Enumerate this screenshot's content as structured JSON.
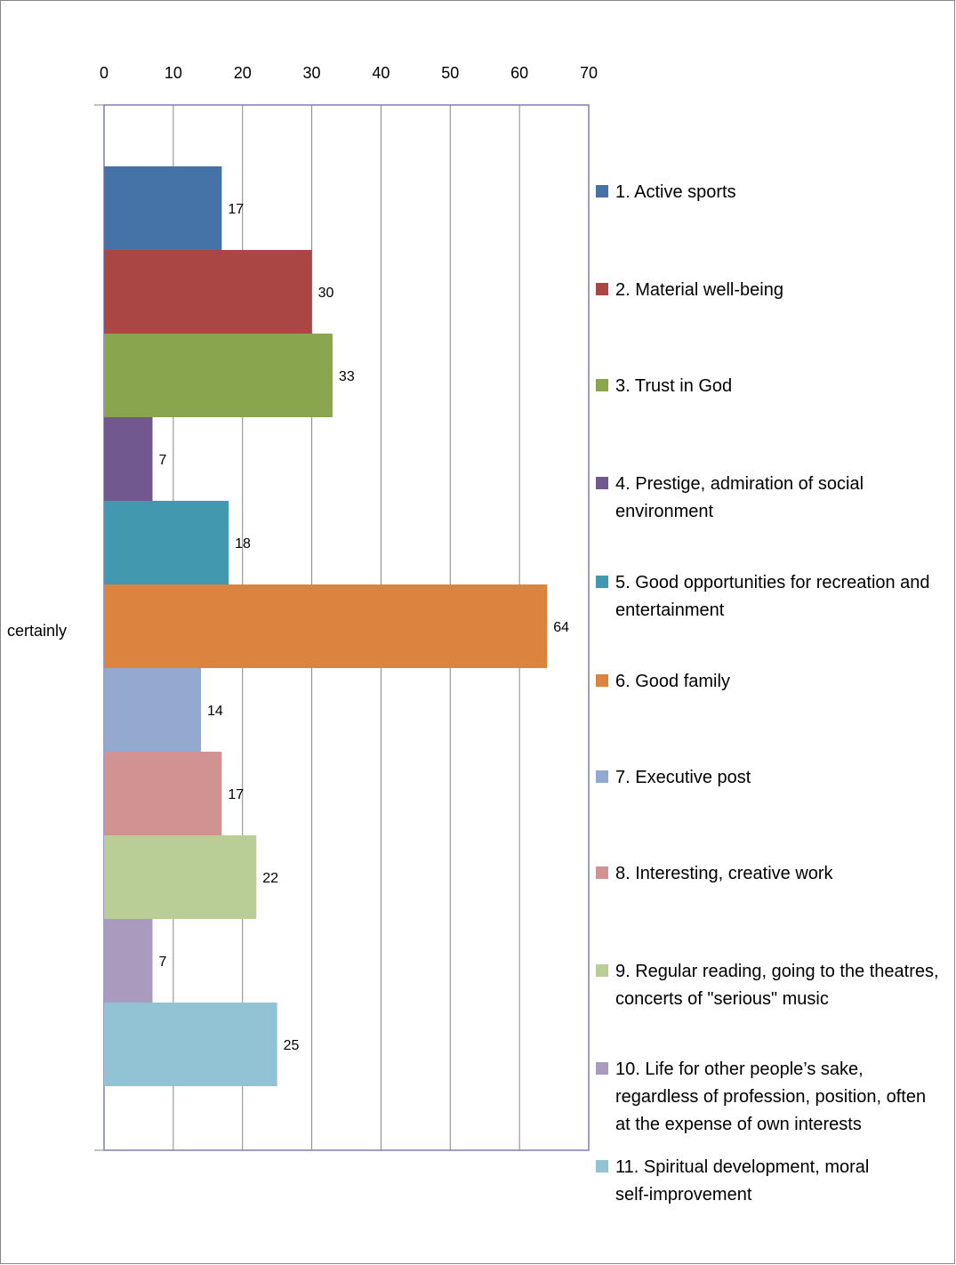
{
  "chart_data": {
    "type": "bar",
    "orientation": "horizontal",
    "title": "",
    "xlabel": "",
    "ylabel": "",
    "categories": [
      "certainly"
    ],
    "xlim": [
      0,
      70
    ],
    "x_ticks": [
      0,
      10,
      20,
      30,
      40,
      50,
      60,
      70
    ],
    "x_axis_position": "top",
    "grid": true,
    "legend_position": "right",
    "data_labels": true,
    "series": [
      {
        "name": "1. Active sports",
        "color": "#4572A7",
        "values": [
          17
        ]
      },
      {
        "name": "2. Material well-being",
        "color": "#AA4643",
        "values": [
          30
        ]
      },
      {
        "name": "3. Trust in God",
        "color": "#89A54E",
        "values": [
          33
        ]
      },
      {
        "name": "4. Prestige, admiration of social environment",
        "color": "#71588F",
        "values": [
          7
        ]
      },
      {
        "name": "5. Good opportunities for recreation and entertainment",
        "color": "#4198AF",
        "values": [
          18
        ]
      },
      {
        "name": "6. Good family",
        "color": "#DB843D",
        "values": [
          64
        ]
      },
      {
        "name": "7. Executive post",
        "color": "#93A9CF",
        "values": [
          14
        ]
      },
      {
        "name": "8. Interesting, creative work",
        "color": "#D19392",
        "values": [
          17
        ]
      },
      {
        "name": "9. Regular reading, going to the theatres, concerts of \"serious\" music",
        "color": "#B9CD96",
        "values": [
          22
        ]
      },
      {
        "name": "10. Life for other  people’s sake, regardless of profession, position, often at the expense of own interests",
        "color": "#A99BBD",
        "values": [
          7
        ]
      },
      {
        "name": "11. Spiritual development, moral self-improvement",
        "color": "#92C3D4",
        "values": [
          25
        ]
      }
    ]
  }
}
